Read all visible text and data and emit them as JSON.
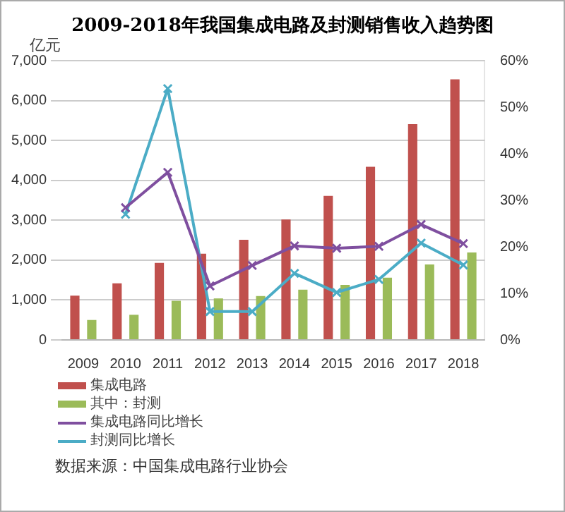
{
  "chart_data": {
    "type": "bar",
    "title": "2009-2018年我国集成电路及封测销售收入趋势图",
    "ylabel": "亿元",
    "categories": [
      "2009",
      "2010",
      "2011",
      "2012",
      "2013",
      "2014",
      "2015",
      "2016",
      "2017",
      "2018"
    ],
    "series": [
      {
        "name": "集成电路",
        "color": "#c0504d",
        "values": [
          1110,
          1420,
          1930,
          2160,
          2510,
          3020,
          3610,
          4340,
          5410,
          6530
        ]
      },
      {
        "name": "其中：封测",
        "color": "#9bbb59",
        "values": [
          500,
          630,
          980,
          1040,
          1100,
          1260,
          1380,
          1560,
          1890,
          2190
        ]
      },
      {
        "name": "集成电路同比增长",
        "type": "line",
        "axis": "y2",
        "color": "#7f4f9f",
        "values": [
          null,
          28.4,
          36,
          11.6,
          16,
          20.2,
          19.7,
          20.1,
          24.8,
          20.7
        ]
      },
      {
        "name": "封测同比增长",
        "type": "line",
        "axis": "y2",
        "color": "#4bacc6",
        "values": [
          null,
          27,
          54,
          6.1,
          6.1,
          14.3,
          10.2,
          13,
          20.8,
          16.1
        ]
      }
    ],
    "ylim": [
      0,
      7000
    ],
    "yticks": [
      {
        "value": 0,
        "label": "0"
      },
      {
        "value": 1000,
        "label": "1,000"
      },
      {
        "value": 2000,
        "label": "2,000"
      },
      {
        "value": 3000,
        "label": "3,000"
      },
      {
        "value": 4000,
        "label": "4,000"
      },
      {
        "value": 5000,
        "label": "5,000"
      },
      {
        "value": 6000,
        "label": "6,000"
      },
      {
        "value": 7000,
        "label": "7,000"
      }
    ],
    "y2lim": [
      0,
      60
    ],
    "y2ticks": [
      {
        "value": 0,
        "label": "0%"
      },
      {
        "value": 10,
        "label": "10%"
      },
      {
        "value": 20,
        "label": "20%"
      },
      {
        "value": 30,
        "label": "30%"
      },
      {
        "value": 40,
        "label": "40%"
      },
      {
        "value": 50,
        "label": "50%"
      },
      {
        "value": 60,
        "label": "60%"
      }
    ],
    "grid": "y",
    "legend": "bottom",
    "marker": "cross",
    "line_style": "solid",
    "annotations": [
      "数据来源：中国集成电路行业协会"
    ]
  }
}
